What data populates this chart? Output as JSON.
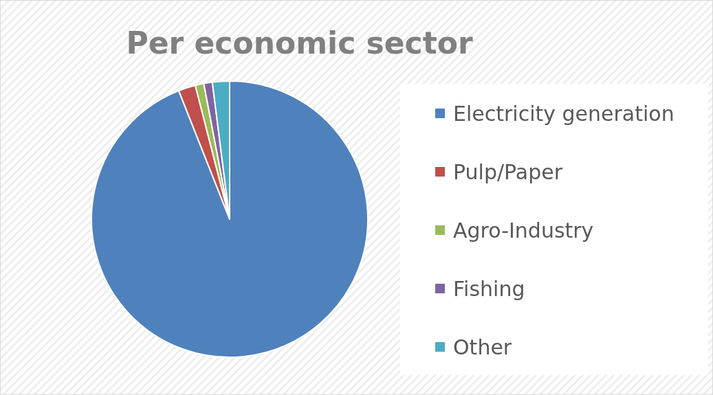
{
  "chart_data": {
    "type": "pie",
    "title": "Per economic sector",
    "categories": [
      "Electricity generation",
      "Pulp/Paper",
      "Agro-Industry",
      "Fishing",
      "Other"
    ],
    "values": [
      94,
      2,
      1,
      1,
      2
    ],
    "colors": [
      "#4f81bd",
      "#c0504d",
      "#9bbb59",
      "#8064a2",
      "#4bacc6"
    ],
    "legend": "right"
  }
}
